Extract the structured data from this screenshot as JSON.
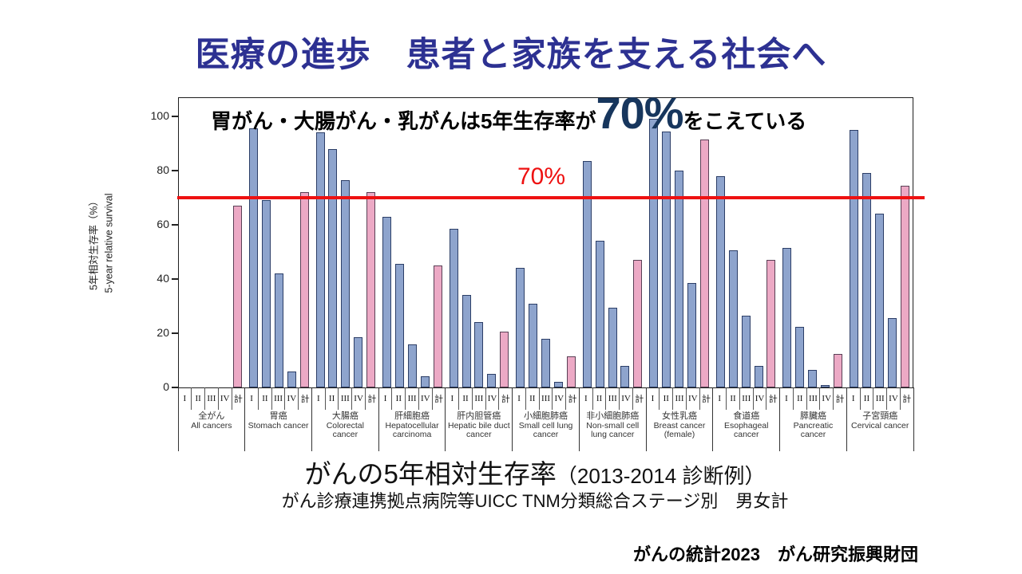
{
  "slide": {
    "title": "医療の進歩　患者と家族を支える社会へ",
    "caption_main": "がんの5年相対生存率",
    "caption_paren": "（2013-2014 診断例）",
    "caption_sub": "がん診療連携拠点病院等UICC TNM分類総合ステージ別　男女計",
    "credit": "がんの統計2023　がん研究振興財団"
  },
  "annotation": {
    "prefix": "胃がん・大腸がん・乳がんは5年生存率が",
    "highlight": "70%",
    "suffix": "をこえている"
  },
  "reference_line": {
    "value": 70,
    "label": "70%",
    "color": "#ee1111"
  },
  "colors": {
    "title": "#2d3192",
    "annotation_highlight": "#17365d",
    "bar_stage_fill": "#8ea4cd",
    "bar_stage_border": "#2c3e67",
    "bar_total_fill": "#eca9c5",
    "bar_total_border": "#5a4056"
  },
  "chart_data": {
    "type": "bar",
    "ylabel_jp": "5年相対生存率（%）",
    "ylabel_en": "5-year relative survival",
    "ylim": [
      0,
      100
    ],
    "yticks": [
      0,
      20,
      40,
      60,
      80,
      100
    ],
    "grid": false,
    "legend": "none",
    "stage_categories": [
      "I",
      "II",
      "III",
      "IV",
      "計"
    ],
    "groups": [
      {
        "jp": "全がん",
        "en": "All cancers",
        "values": [
          null,
          null,
          null,
          null,
          67
        ]
      },
      {
        "jp": "胃癌",
        "en": "Stomach cancer",
        "values": [
          95.5,
          69,
          42,
          6,
          72
        ]
      },
      {
        "jp": "大腸癌",
        "en": "Colorectal cancer",
        "values": [
          94,
          88,
          76.5,
          18.5,
          72
        ]
      },
      {
        "jp": "肝細胞癌",
        "en": "Hepatocellular carcinoma",
        "values": [
          63,
          45.5,
          16,
          4,
          45
        ]
      },
      {
        "jp": "肝内胆管癌",
        "en": "Hepatic bile duct cancer",
        "values": [
          58.5,
          34,
          24,
          5,
          20.5
        ]
      },
      {
        "jp": "小細胞肺癌",
        "en": "Small cell lung cancer",
        "values": [
          44,
          31,
          18,
          2,
          11.5
        ]
      },
      {
        "jp": "非小細胞肺癌",
        "en": "Non-small cell lung cancer",
        "values": [
          83.5,
          54,
          29.5,
          8,
          47
        ]
      },
      {
        "jp": "女性乳癌",
        "en": "Breast cancer (female)",
        "values": [
          99,
          94.5,
          80,
          38.5,
          91.5
        ]
      },
      {
        "jp": "食道癌",
        "en": "Esophageal cancer",
        "values": [
          78,
          50.5,
          26.5,
          8,
          47
        ]
      },
      {
        "jp": "膵臓癌",
        "en": "Pancreatic cancer",
        "values": [
          51.5,
          22.5,
          6.5,
          1,
          12.5
        ]
      },
      {
        "jp": "子宮頸癌",
        "en": "Cervical cancer",
        "values": [
          95,
          79,
          64,
          25.5,
          74.5
        ]
      }
    ]
  }
}
